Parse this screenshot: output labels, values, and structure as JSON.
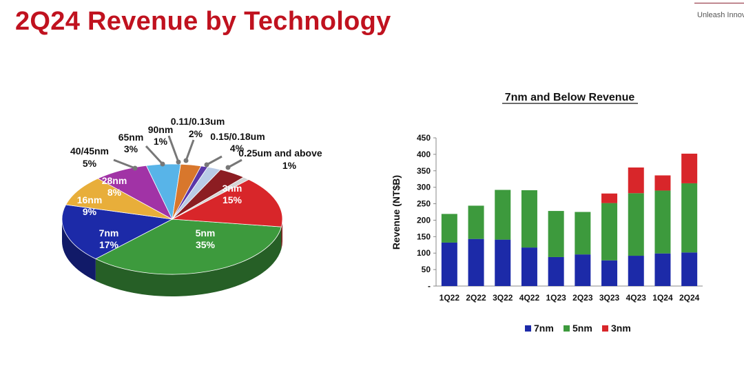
{
  "header": {
    "title": "2Q24 Revenue by Technology",
    "tagline": "Unleash Innova"
  },
  "colors": {
    "title": "#c0121f",
    "7nm": "#1c2aa8",
    "5nm": "#3d9a3d",
    "3nm": "#d8262a"
  },
  "chart_data": [
    {
      "type": "pie",
      "slices": [
        {
          "label": "5nm",
          "value": 35,
          "value_label": "35%",
          "color": "#3d9a3d"
        },
        {
          "label": "7nm",
          "value": 17,
          "value_label": "17%",
          "color": "#1c2aa8"
        },
        {
          "label": "16nm",
          "value": 9,
          "value_label": "9%",
          "color": "#e8ae3a"
        },
        {
          "label": "28nm",
          "value": 8,
          "value_label": "8%",
          "color": "#a133a6"
        },
        {
          "label": "40/45nm",
          "value": 5,
          "value_label": "5%",
          "color": "#58b4e8"
        },
        {
          "label": "65nm",
          "value": 3,
          "value_label": "3%",
          "color": "#d8772c"
        },
        {
          "label": "90nm",
          "value": 1,
          "value_label": "1%",
          "color": "#5a36a8"
        },
        {
          "label": "0.11/0.13um",
          "value": 2,
          "value_label": "2%",
          "color": "#b9cbe6"
        },
        {
          "label": "0.15/0.18um",
          "value": 4,
          "value_label": "4%",
          "color": "#8c1d22"
        },
        {
          "label": "0.25um and above",
          "value": 1,
          "value_label": "1%",
          "color": "#d4d4d4"
        },
        {
          "label": "3nm",
          "value": 15,
          "value_label": "15%",
          "color": "#d8262a"
        }
      ]
    },
    {
      "type": "bar",
      "stacked": true,
      "title": "7nm and Below Revenue",
      "ylabel": "Revenue (NT$B)",
      "ylim": [
        0,
        450
      ],
      "yticks": [
        0,
        50,
        100,
        150,
        200,
        250,
        300,
        350,
        400,
        450
      ],
      "ytick_labels": [
        "-",
        "50",
        "100",
        "150",
        "200",
        "250",
        "300",
        "350",
        "400",
        "450"
      ],
      "categories": [
        "1Q22",
        "2Q22",
        "3Q22",
        "4Q22",
        "1Q23",
        "2Q23",
        "3Q23",
        "4Q23",
        "1Q24",
        "2Q24"
      ],
      "series": [
        {
          "name": "7nm",
          "color": "#1c2aa8",
          "values": [
            132,
            143,
            141,
            117,
            88,
            96,
            78,
            92,
            99,
            102
          ]
        },
        {
          "name": "5nm",
          "color": "#3d9a3d",
          "values": [
            87,
            101,
            151,
            174,
            140,
            129,
            174,
            190,
            191,
            210
          ]
        },
        {
          "name": "3nm",
          "color": "#d8262a",
          "values": [
            0,
            0,
            0,
            0,
            0,
            0,
            29,
            78,
            46,
            90
          ]
        }
      ],
      "legend": "bottom"
    }
  ]
}
